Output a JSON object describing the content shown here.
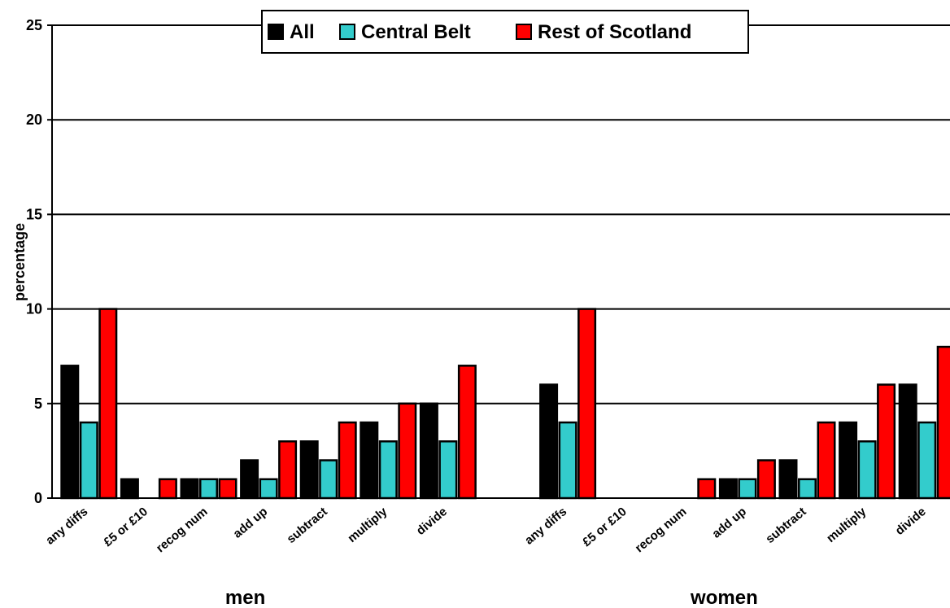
{
  "chart_data": {
    "type": "bar",
    "ylabel": "percentage",
    "ylim": [
      0,
      25
    ],
    "yticks": [
      "0",
      "5",
      "10",
      "15",
      "20",
      "25"
    ],
    "grid": true,
    "legend_position": "top",
    "series": [
      {
        "name": "All",
        "color": "#000000"
      },
      {
        "name": "Central Belt",
        "color": "#33CCCC"
      },
      {
        "name": "Rest of Scotland",
        "color": "#FF0000"
      }
    ],
    "groups": [
      {
        "label": "men",
        "categories": [
          "any diffs",
          "£5 or £10",
          "recog num",
          "add up",
          "subtract",
          "multiply",
          "divide"
        ],
        "values": {
          "All": [
            7,
            1,
            1,
            2,
            3,
            4,
            5
          ],
          "Central Belt": [
            4,
            0,
            1,
            1,
            2,
            3,
            3
          ],
          "Rest of Scotland": [
            10,
            1,
            1,
            3,
            4,
            5,
            7
          ]
        }
      },
      {
        "label": "women",
        "categories": [
          "any diffs",
          "£5 or £10",
          "recog num",
          "add up",
          "subtract",
          "multiply",
          "divide"
        ],
        "values": {
          "All": [
            6,
            0,
            0,
            1,
            2,
            4,
            6
          ],
          "Central Belt": [
            4,
            0,
            0,
            1,
            1,
            3,
            4
          ],
          "Rest of Scotland": [
            10,
            0,
            1,
            2,
            4,
            6,
            8
          ]
        }
      }
    ]
  }
}
